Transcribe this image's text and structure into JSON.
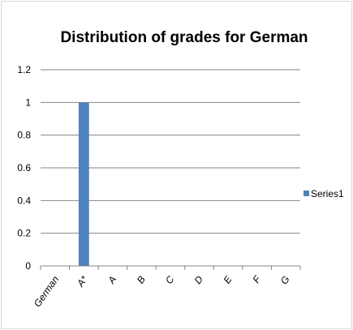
{
  "chart_data": {
    "type": "bar",
    "title": "Distribution of grades for German",
    "xlabel": "",
    "ylabel": "",
    "categories": [
      "German",
      "A*",
      "A",
      "B",
      "C",
      "D",
      "E",
      "F",
      "G"
    ],
    "series": [
      {
        "name": "Series1",
        "values": [
          0,
          1,
          0,
          0,
          0,
          0,
          0,
          0,
          0
        ]
      }
    ],
    "ylim": [
      0,
      1.2
    ],
    "yticks": [
      "0",
      "0.2",
      "0.4",
      "0.6",
      "0.8",
      "1",
      "1.2"
    ],
    "grid": true,
    "legend_position": "right",
    "colors": {
      "series1": "#4f81bd",
      "gridline": "#868686",
      "axis": "#868686"
    }
  }
}
